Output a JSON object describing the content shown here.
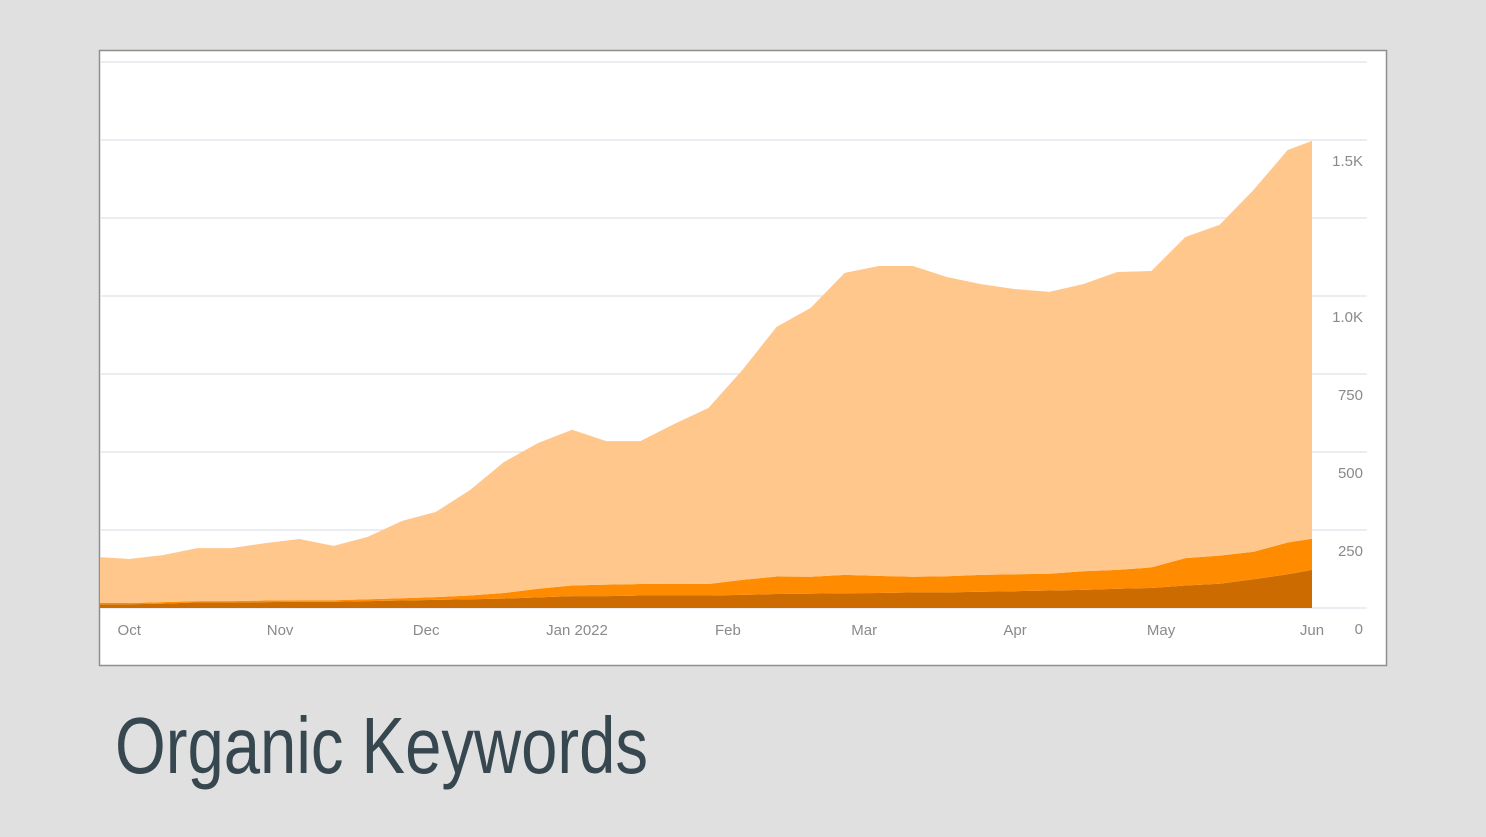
{
  "chart_data": {
    "type": "stacked-area",
    "title": "Organic Keywords",
    "x": [
      -6,
      0,
      7,
      14,
      21,
      28,
      35,
      42,
      49,
      56,
      63,
      70,
      77,
      84,
      91,
      98,
      105,
      112,
      119,
      126,
      133,
      140,
      147,
      154,
      161,
      168,
      175,
      182,
      189,
      196,
      203,
      210,
      217,
      224,
      231,
      238,
      243
    ],
    "xlim": [
      -6,
      243
    ],
    "xticks": [
      {
        "value": 0,
        "label": "Oct"
      },
      {
        "value": 31,
        "label": "Nov"
      },
      {
        "value": 61,
        "label": "Dec"
      },
      {
        "value": 92,
        "label": "Jan 2022"
      },
      {
        "value": 123,
        "label": "Feb"
      },
      {
        "value": 151,
        "label": "Mar"
      },
      {
        "value": 182,
        "label": "Apr"
      },
      {
        "value": 212,
        "label": "May"
      },
      {
        "value": 243,
        "label": "Jun"
      }
    ],
    "ylim": [
      0,
      1750
    ],
    "yticks": [
      0,
      250,
      500,
      750,
      {
        "value": 1000,
        "label": "1.0K"
      },
      {
        "value": 1500,
        "label": "1.5K"
      }
    ],
    "minor_yticks": [
      1250,
      1750
    ],
    "grid": true,
    "series": [
      {
        "color": "#cc6c00",
        "values": [
          12,
          12,
          14,
          18,
          18,
          19,
          20,
          20,
          22,
          24,
          26,
          28,
          30,
          34,
          38,
          38,
          40,
          40,
          40,
          42,
          45,
          46,
          47,
          48,
          50,
          50,
          52,
          54,
          56,
          58,
          62,
          64,
          72,
          78,
          92,
          108,
          122
        ]
      },
      {
        "color": "#ff8b00",
        "values": [
          4,
          4,
          5,
          4,
          4,
          5,
          5,
          5,
          6,
          7,
          9,
          12,
          18,
          28,
          34,
          37,
          37,
          38,
          37,
          48,
          56,
          54,
          59,
          55,
          50,
          52,
          54,
          54,
          54,
          60,
          60,
          66,
          88,
          90,
          88,
          102,
          100
        ]
      },
      {
        "color": "#ffc78c",
        "values": [
          147,
          141,
          151,
          170,
          170,
          184,
          196,
          174,
          200,
          248,
          273,
          338,
          420,
          467,
          499,
          460,
          458,
          512,
          564,
          673,
          800,
          862,
          968,
          993,
          996,
          959,
          932,
          914,
          903,
          920,
          955,
          950,
          1029,
          1060,
          1160,
          1258,
          1275
        ]
      }
    ]
  }
}
